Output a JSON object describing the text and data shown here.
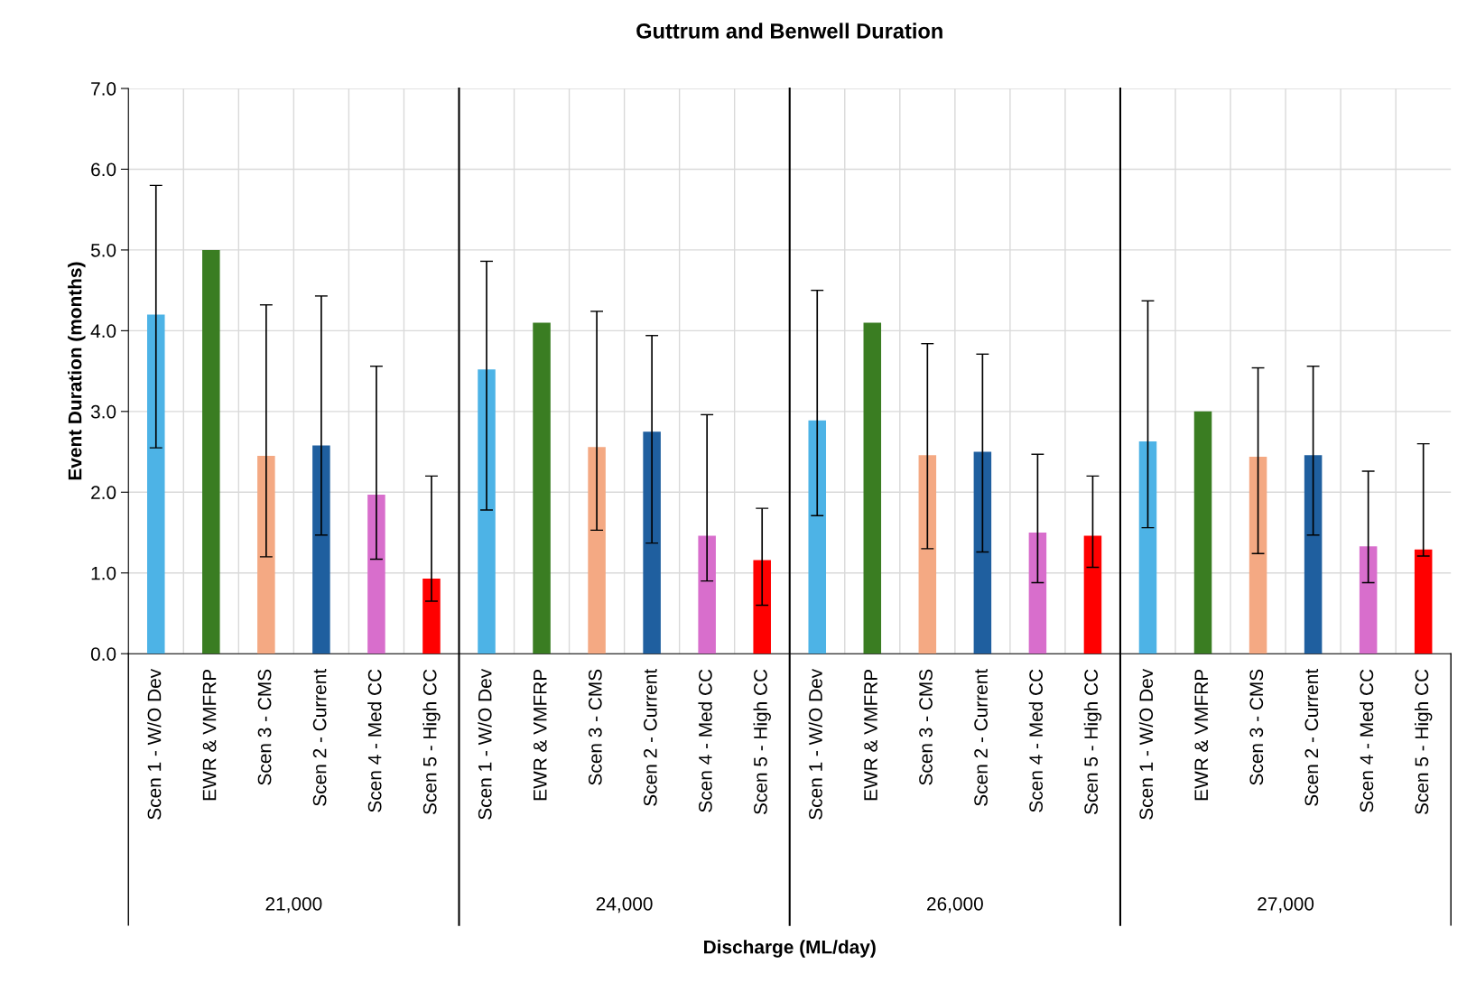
{
  "chart_data": {
    "type": "bar",
    "title": "Guttrum and Benwell Duration",
    "ylabel": "Event Duration (months)",
    "categories": [
      "Scen 1 - W/O Dev",
      "EWR & VMFRP",
      "Scen 3 - CMS",
      "Scen 2 - Current",
      "Scen 4 - Med CC",
      "Scen 5 - High CC",
      "Scen 1 - W/O Dev",
      "EWR & VMFRP",
      "Scen 3 - CMS",
      "Scen 2 - Current",
      "Scen 4 - Med CC",
      "Scen 5 - High CC",
      "Scen 1 - W/O Dev",
      "EWR & VMFRP",
      "Scen 3 - CMS",
      "Scen 2 - Current",
      "Scen 4 - Med CC",
      "Scen 5 - High CC",
      "Scen 1 - W/O Dev",
      "EWR & VMFRP",
      "Scen 3 - CMS",
      "Scen 2 - Current",
      "Scen 4 - Med CC",
      "Scen 5 - High CC"
    ],
    "series": [
      {
        "values": [
          4.2,
          5.0,
          2.45,
          2.58,
          1.97,
          0.93,
          3.52,
          4.1,
          2.56,
          2.75,
          1.46,
          1.16,
          2.89,
          4.1,
          2.46,
          2.5,
          1.5,
          1.46,
          2.63,
          3.0,
          2.44,
          2.46,
          1.33,
          1.29
        ],
        "colors": [
          "#4db3e6",
          "#3a7d22",
          "#f4a983",
          "#1f5f9f",
          "#d86ecc",
          "#ff0000",
          "#4db3e6",
          "#3a7d22",
          "#f4a983",
          "#1f5f9f",
          "#d86ecc",
          "#ff0000",
          "#4db3e6",
          "#3a7d22",
          "#f4a983",
          "#1f5f9f",
          "#d86ecc",
          "#ff0000",
          "#4db3e6",
          "#3a7d22",
          "#f4a983",
          "#1f5f9f",
          "#d86ecc",
          "#ff0000"
        ],
        "errors": [
          [
            2.55,
            5.8
          ],
          null,
          [
            1.2,
            4.32
          ],
          [
            1.47,
            4.43
          ],
          [
            1.17,
            3.56
          ],
          [
            0.65,
            2.2
          ],
          [
            1.78,
            4.86
          ],
          null,
          [
            1.53,
            4.24
          ],
          [
            1.37,
            3.94
          ],
          [
            0.9,
            2.96
          ],
          [
            0.6,
            1.8
          ],
          [
            1.71,
            4.5
          ],
          null,
          [
            1.3,
            3.84
          ],
          [
            1.26,
            3.71
          ],
          [
            0.88,
            2.47
          ],
          [
            1.07,
            2.2
          ],
          [
            1.56,
            4.37
          ],
          null,
          [
            1.24,
            3.54
          ],
          [
            1.47,
            3.56
          ],
          [
            0.88,
            2.26
          ],
          [
            1.21,
            2.6
          ]
        ]
      }
    ],
    "annotations": [
      "21,000",
      "24,000",
      "26,000",
      "27,000",
      "Discharge (ML/day)"
    ],
    "ylim": [
      0,
      7
    ],
    "yticks": [
      {
        "value": 0,
        "label": "0.0"
      },
      {
        "value": 1,
        "label": "1.0"
      },
      {
        "value": 2,
        "label": "2.0"
      },
      {
        "value": 3,
        "label": "3.0"
      },
      {
        "value": 4,
        "label": "4.0"
      },
      {
        "value": 5,
        "label": "5.0"
      },
      {
        "value": 6,
        "label": "6.0"
      },
      {
        "value": 7,
        "label": "7.0"
      }
    ],
    "grid": true,
    "legend": false
  }
}
